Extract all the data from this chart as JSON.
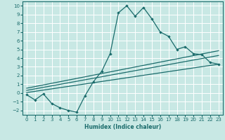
{
  "xlabel": "Humidex (Indice chaleur)",
  "xlim": [
    -0.5,
    23.5
  ],
  "ylim": [
    -2.5,
    10.5
  ],
  "xticks": [
    0,
    1,
    2,
    3,
    4,
    5,
    6,
    7,
    8,
    9,
    10,
    11,
    12,
    13,
    14,
    15,
    16,
    17,
    18,
    19,
    20,
    21,
    22,
    23
  ],
  "yticks": [
    -2,
    -1,
    0,
    1,
    2,
    3,
    4,
    5,
    6,
    7,
    8,
    9,
    10
  ],
  "bg_color": "#c8e8e4",
  "line_color": "#1a6b6b",
  "grid_color": "#ffffff",
  "curve1_x": [
    0,
    1,
    2,
    3,
    4,
    5,
    6,
    7,
    8,
    9,
    10,
    11,
    12,
    13,
    14,
    15,
    16,
    17,
    18,
    19,
    20,
    21,
    22,
    23
  ],
  "curve1_y": [
    -0.2,
    -0.8,
    -0.1,
    -1.2,
    -1.7,
    -2.0,
    -2.2,
    -0.3,
    1.3,
    2.5,
    4.5,
    9.2,
    10.0,
    8.8,
    9.8,
    8.5,
    7.0,
    6.5,
    5.0,
    5.3,
    4.5,
    4.4,
    3.5,
    3.3
  ],
  "line1_x": [
    0,
    23
  ],
  "line1_y": [
    0.05,
    3.3
  ],
  "line2_x": [
    0,
    23
  ],
  "line2_y": [
    0.3,
    4.3
  ],
  "line3_x": [
    0,
    23
  ],
  "line3_y": [
    0.55,
    4.85
  ]
}
